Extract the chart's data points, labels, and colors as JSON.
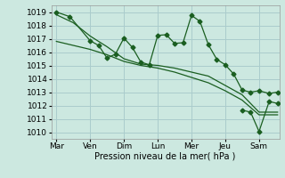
{
  "bg_color": "#cce8e0",
  "grid_color": "#aacccc",
  "line_color": "#1a5e20",
  "xlabel": "Pression niveau de la mer( hPa )",
  "xtick_labels": [
    "Mar",
    "Ven",
    "Dim",
    "Lun",
    "Mer",
    "Jeu",
    "Sam"
  ],
  "xtick_positions": [
    0,
    1,
    2,
    3,
    4,
    5,
    6
  ],
  "ylim": [
    1009.5,
    1019.5
  ],
  "yticks": [
    1010,
    1011,
    1012,
    1013,
    1014,
    1015,
    1016,
    1017,
    1018,
    1019
  ],
  "xlim": [
    -0.15,
    6.6
  ],
  "series1_x": [
    0.0,
    0.4,
    1.0,
    1.25,
    1.5,
    1.75,
    2.0,
    2.25,
    2.5,
    2.75,
    3.0,
    3.25,
    3.5,
    3.75,
    4.0,
    4.25,
    4.5,
    4.75,
    5.0,
    5.25,
    5.5,
    5.75,
    6.0,
    6.3,
    6.55
  ],
  "series1_y": [
    1019.0,
    1018.65,
    1016.85,
    1016.5,
    1015.55,
    1015.85,
    1017.05,
    1016.35,
    1015.25,
    1015.05,
    1017.25,
    1017.3,
    1016.65,
    1016.7,
    1018.75,
    1018.3,
    1016.55,
    1015.45,
    1015.05,
    1014.35,
    1013.15,
    1013.0,
    1013.1,
    1012.9,
    1013.0
  ],
  "series2_x": [
    0.0,
    0.5,
    1.0,
    1.5,
    2.0,
    2.5,
    3.0,
    3.5,
    4.0,
    4.5,
    5.0,
    5.5,
    6.0,
    6.55
  ],
  "series2_y": [
    1018.8,
    1018.2,
    1017.2,
    1016.4,
    1015.5,
    1015.1,
    1015.0,
    1014.8,
    1014.5,
    1014.2,
    1013.5,
    1012.8,
    1011.5,
    1011.5
  ],
  "series3_x": [
    0.0,
    0.5,
    1.0,
    1.5,
    2.0,
    2.5,
    3.0,
    3.5,
    4.0,
    4.5,
    5.0,
    5.5,
    6.0,
    6.55
  ],
  "series3_y": [
    1016.8,
    1016.5,
    1016.2,
    1015.8,
    1015.3,
    1015.0,
    1014.8,
    1014.5,
    1014.1,
    1013.7,
    1013.1,
    1012.4,
    1011.3,
    1011.3
  ],
  "series4_x": [
    5.5,
    5.75,
    6.0,
    6.3,
    6.55
  ],
  "series4_y": [
    1011.65,
    1011.5,
    1010.05,
    1012.3,
    1012.15
  ]
}
